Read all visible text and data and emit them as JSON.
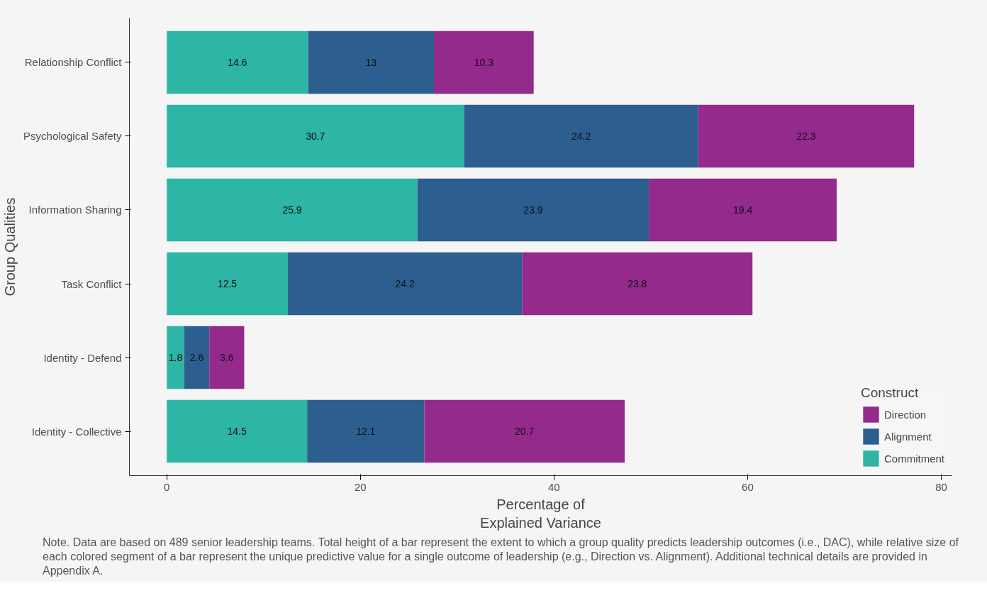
{
  "chart_data": {
    "type": "bar",
    "orientation": "horizontal",
    "stacked": true,
    "data_labels": true,
    "categories": [
      "Relationship Conflict",
      "Psychological Safety",
      "Information Sharing",
      "Task Conflict",
      "Identity - Defend",
      "Identity - Collective"
    ],
    "series": [
      {
        "name": "Commitment",
        "color": "#2db5a5",
        "values": [
          14.6,
          30.7,
          25.9,
          12.5,
          1.8,
          14.5
        ]
      },
      {
        "name": "Alignment",
        "color": "#2d5e90",
        "values": [
          13,
          24.2,
          23.9,
          24.2,
          2.6,
          12.1
        ]
      },
      {
        "name": "Direction",
        "color": "#932a8c",
        "values": [
          10.3,
          22.3,
          19.4,
          23.8,
          3.6,
          20.7
        ]
      }
    ],
    "xlim": [
      -3.86,
      81.1
    ],
    "xticks": [
      0,
      20,
      40,
      60,
      80
    ],
    "xlabel": "Percentage of\nExplained Variance",
    "ylabel": "Group Qualities",
    "legend_title": "Construct",
    "legend": "bottom right",
    "annotations": [
      "Note. Data are based on 489 senior leadership teams. Total height of a bar represent the extent to which a group quality predicts leadership outcomes (i.e., DAC), while relative size of each colored segment of a bar represent the unique predictive value for a single outcome of leadership (e.g., Direction vs. Alignment). Additional technical details are provided in Appendix A."
    ]
  }
}
